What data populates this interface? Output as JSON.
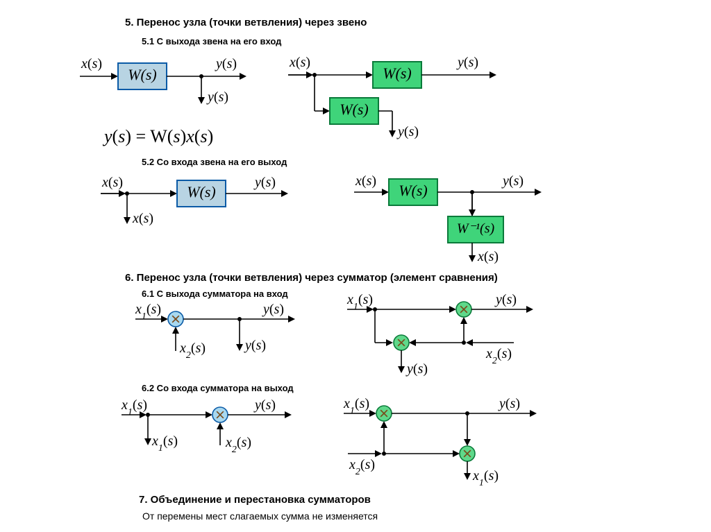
{
  "headings": {
    "h5": "5. Перенос узла (точки ветвления) через звено",
    "h5_1": "5.1 С выхода звена на его вход",
    "h5_2": "5.2 Со входа звена на его выход",
    "h6": "6. Перенос узла (точки ветвления) через сумматор (элемент сравнения)",
    "h6_1": "6.1 С выхода сумматора на вход",
    "h6_2": "6.2 Со входа сумматора на выход",
    "h7": "7. Объединение и перестановка сумматоров",
    "note7": "От перемены мест слагаемых сумма не изменяется"
  },
  "labels": {
    "xs": "x(s)",
    "ys": "y(s)",
    "x1s": "x₁(s)",
    "x2s": "x₂(s)",
    "Ws": "W(s)",
    "Winv": "W⁻¹(s)",
    "equation": "y(s) = W(s)x(s)"
  },
  "colors": {
    "blueFill": "#b8d4e3",
    "blueStroke": "#0a5aa6",
    "greenFill": "#3fd47a",
    "greenStroke": "#0a7a3a",
    "sumBlueFill": "#a8d8f0",
    "sumBlueStroke": "#0a5aa6",
    "sumBlueSpoke": "#7a4a1a",
    "sumGreenFill": "#5fd88a",
    "sumGreenStroke": "#0a7a3a",
    "sumGreenSpoke": "#7a4a1a",
    "line": "#000000",
    "text": "#000000"
  },
  "geom": {
    "arrowLen": 10,
    "lineW": 1.6,
    "boxLineW": 2,
    "nodeR": 3,
    "sumR": 11,
    "blockW": 70,
    "blockH": 38,
    "blockFont": 22,
    "labelFont": 20,
    "eqFont": 26
  }
}
